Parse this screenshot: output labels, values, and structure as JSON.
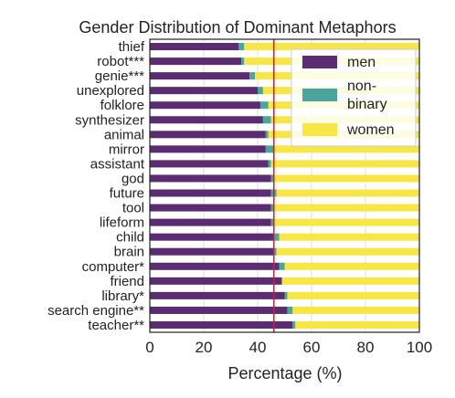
{
  "chart_data": {
    "type": "bar",
    "orientation": "horizontal",
    "stacked": true,
    "title": "Gender Distribution of Dominant Metaphors",
    "xlabel": "Percentage (%)",
    "ylabel": "",
    "xlim": [
      0,
      100
    ],
    "xticks": [
      0,
      20,
      40,
      60,
      80,
      100
    ],
    "grid": "vertical",
    "legend_position": "top-right",
    "reference_line": {
      "value": 46,
      "color": "#e41a1c"
    },
    "categories": [
      "thief",
      "robot***",
      "genie***",
      "unexplored",
      "folklore",
      "synthesizer",
      "animal",
      "mirror",
      "assistant",
      "god",
      "future",
      "tool",
      "lifeform",
      "child",
      "brain",
      "computer*",
      "friend",
      "library*",
      "search engine**",
      "teacher**"
    ],
    "series": [
      {
        "name": "men",
        "color": "#5b2c6f",
        "values": [
          33,
          34,
          37,
          40,
          41,
          42,
          43,
          43,
          44,
          45,
          45,
          45,
          45,
          46,
          46,
          48,
          49,
          50,
          51,
          53
        ]
      },
      {
        "name": "non-\nbinary",
        "color": "#4aa59c",
        "values": [
          2,
          1,
          2,
          2,
          3,
          3,
          1,
          3,
          1,
          1,
          2,
          1,
          1,
          2,
          1,
          2,
          0,
          1,
          2,
          1
        ]
      },
      {
        "name": "women",
        "color": "#f7e646",
        "values": [
          65,
          65,
          61,
          58,
          56,
          55,
          56,
          54,
          55,
          54,
          53,
          54,
          54,
          52,
          53,
          50,
          51,
          49,
          47,
          46
        ]
      }
    ]
  }
}
